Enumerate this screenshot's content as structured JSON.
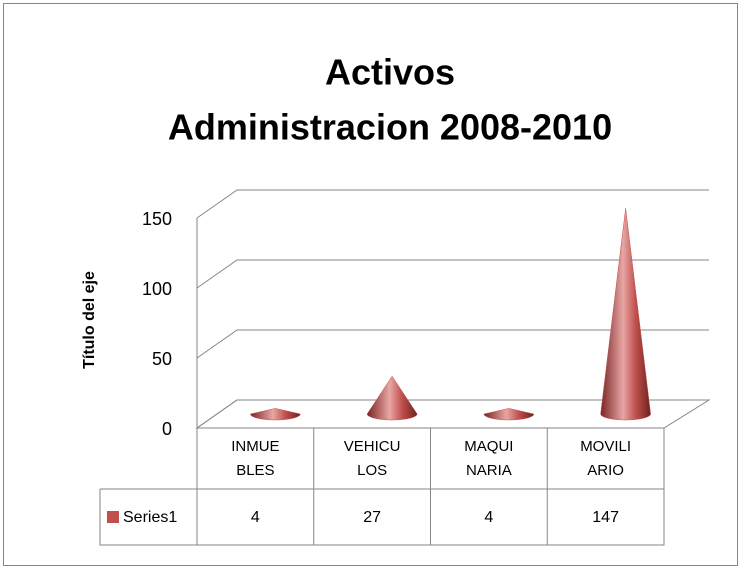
{
  "chart_data": {
    "type": "cone3d",
    "title": "Activos",
    "subtitle": "Administracion 2008-2010",
    "y_label": "Título del eje",
    "categories": [
      "INMUEBLES",
      "VEHICULOS",
      "MAQUINARIA",
      "MOVILIARIO"
    ],
    "series": [
      {
        "name": "Series1",
        "color": "#c0504d",
        "values": [
          4,
          27,
          4,
          147
        ]
      }
    ],
    "ylim": [
      0,
      150
    ],
    "yticks": [
      0,
      50,
      100,
      150
    ],
    "grid": true,
    "data_table": true
  }
}
